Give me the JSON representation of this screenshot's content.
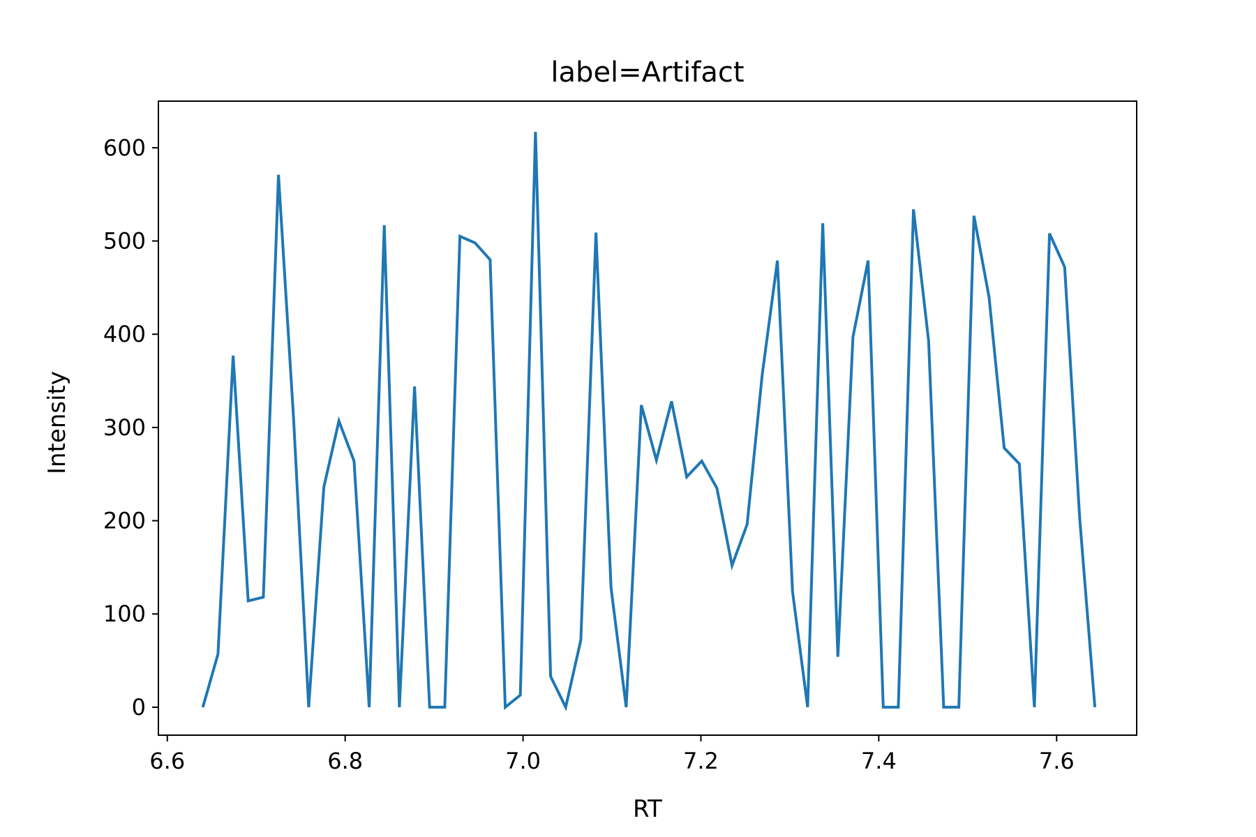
{
  "chart_data": {
    "type": "line",
    "title": "label=Artifact",
    "xlabel": "RT",
    "ylabel": "Intensity",
    "xlim": [
      6.59,
      7.69
    ],
    "ylim": [
      -30,
      650
    ],
    "xticks": [
      6.6,
      6.8,
      7.0,
      7.2,
      7.4,
      7.6
    ],
    "xtick_labels": [
      "6.6",
      "6.8",
      "7.0",
      "7.2",
      "7.4",
      "7.6"
    ],
    "yticks": [
      0,
      100,
      200,
      300,
      400,
      500,
      600
    ],
    "ytick_labels": [
      "0",
      "100",
      "200",
      "300",
      "400",
      "500",
      "600"
    ],
    "grid": false,
    "series": [
      {
        "color": "#1f77b4",
        "x": [
          6.64,
          6.657,
          6.674,
          6.691,
          6.708,
          6.725,
          6.742,
          6.759,
          6.776,
          6.793,
          6.81,
          6.827,
          6.844,
          6.861,
          6.878,
          6.895,
          6.912,
          6.929,
          6.946,
          6.963,
          6.98,
          6.997,
          7.014,
          7.031,
          7.048,
          7.065,
          7.082,
          7.099,
          7.116,
          7.133,
          7.15,
          7.167,
          7.184,
          7.201,
          7.218,
          7.235,
          7.252,
          7.269,
          7.286,
          7.303,
          7.32,
          7.337,
          7.354,
          7.371,
          7.388,
          7.405,
          7.422,
          7.439,
          7.456,
          7.473,
          7.49,
          7.507,
          7.524,
          7.541,
          7.558,
          7.575,
          7.592,
          7.609,
          7.626,
          7.643
        ],
        "y": [
          0,
          57,
          377,
          114,
          118,
          571,
          310,
          0,
          236,
          307,
          264,
          0,
          517,
          0,
          344,
          0,
          0,
          505,
          498,
          480,
          0,
          13,
          617,
          33,
          0,
          72,
          509,
          128,
          0,
          324,
          265,
          328,
          247,
          264,
          235,
          152,
          196,
          357,
          479,
          124,
          0,
          519,
          54,
          397,
          479,
          0,
          0,
          534,
          393,
          0,
          0,
          527,
          440,
          278,
          261,
          0,
          508,
          472,
          202,
          0
        ]
      }
    ]
  }
}
